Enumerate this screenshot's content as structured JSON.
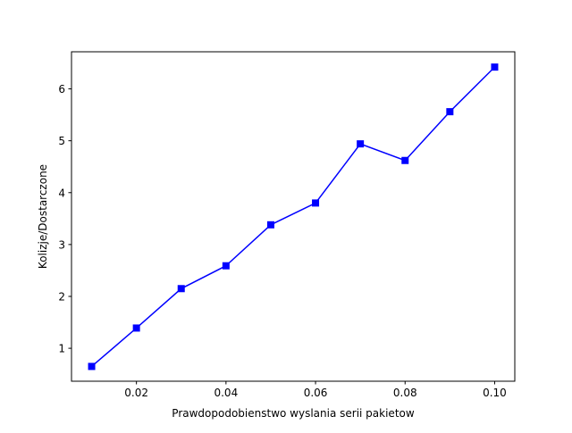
{
  "chart_data": {
    "type": "line",
    "title": "",
    "xlabel": "Prawdopodobienstwo wyslania serii pakietow",
    "ylabel": "Kolizje/Dostarczone",
    "xlim": [
      0.0055,
      0.1045
    ],
    "ylim": [
      0.365,
      6.715
    ],
    "x_ticks": [
      {
        "value": 0.02,
        "label": "0.02"
      },
      {
        "value": 0.04,
        "label": "0.04"
      },
      {
        "value": 0.06,
        "label": "0.06"
      },
      {
        "value": 0.08,
        "label": "0.08"
      },
      {
        "value": 0.1,
        "label": "0.10"
      }
    ],
    "y_ticks": [
      {
        "value": 1,
        "label": "1"
      },
      {
        "value": 2,
        "label": "2"
      },
      {
        "value": 3,
        "label": "3"
      },
      {
        "value": 4,
        "label": "4"
      },
      {
        "value": 5,
        "label": "5"
      },
      {
        "value": 6,
        "label": "6"
      }
    ],
    "grid": false,
    "series": [
      {
        "color": "#0000ff",
        "marker": "square",
        "x": [
          0.01,
          0.02,
          0.03,
          0.04,
          0.05,
          0.06,
          0.07,
          0.08,
          0.09,
          0.1
        ],
        "y": [
          0.65,
          1.39,
          2.15,
          2.59,
          3.38,
          3.8,
          4.94,
          4.62,
          5.56,
          6.42
        ]
      }
    ]
  }
}
